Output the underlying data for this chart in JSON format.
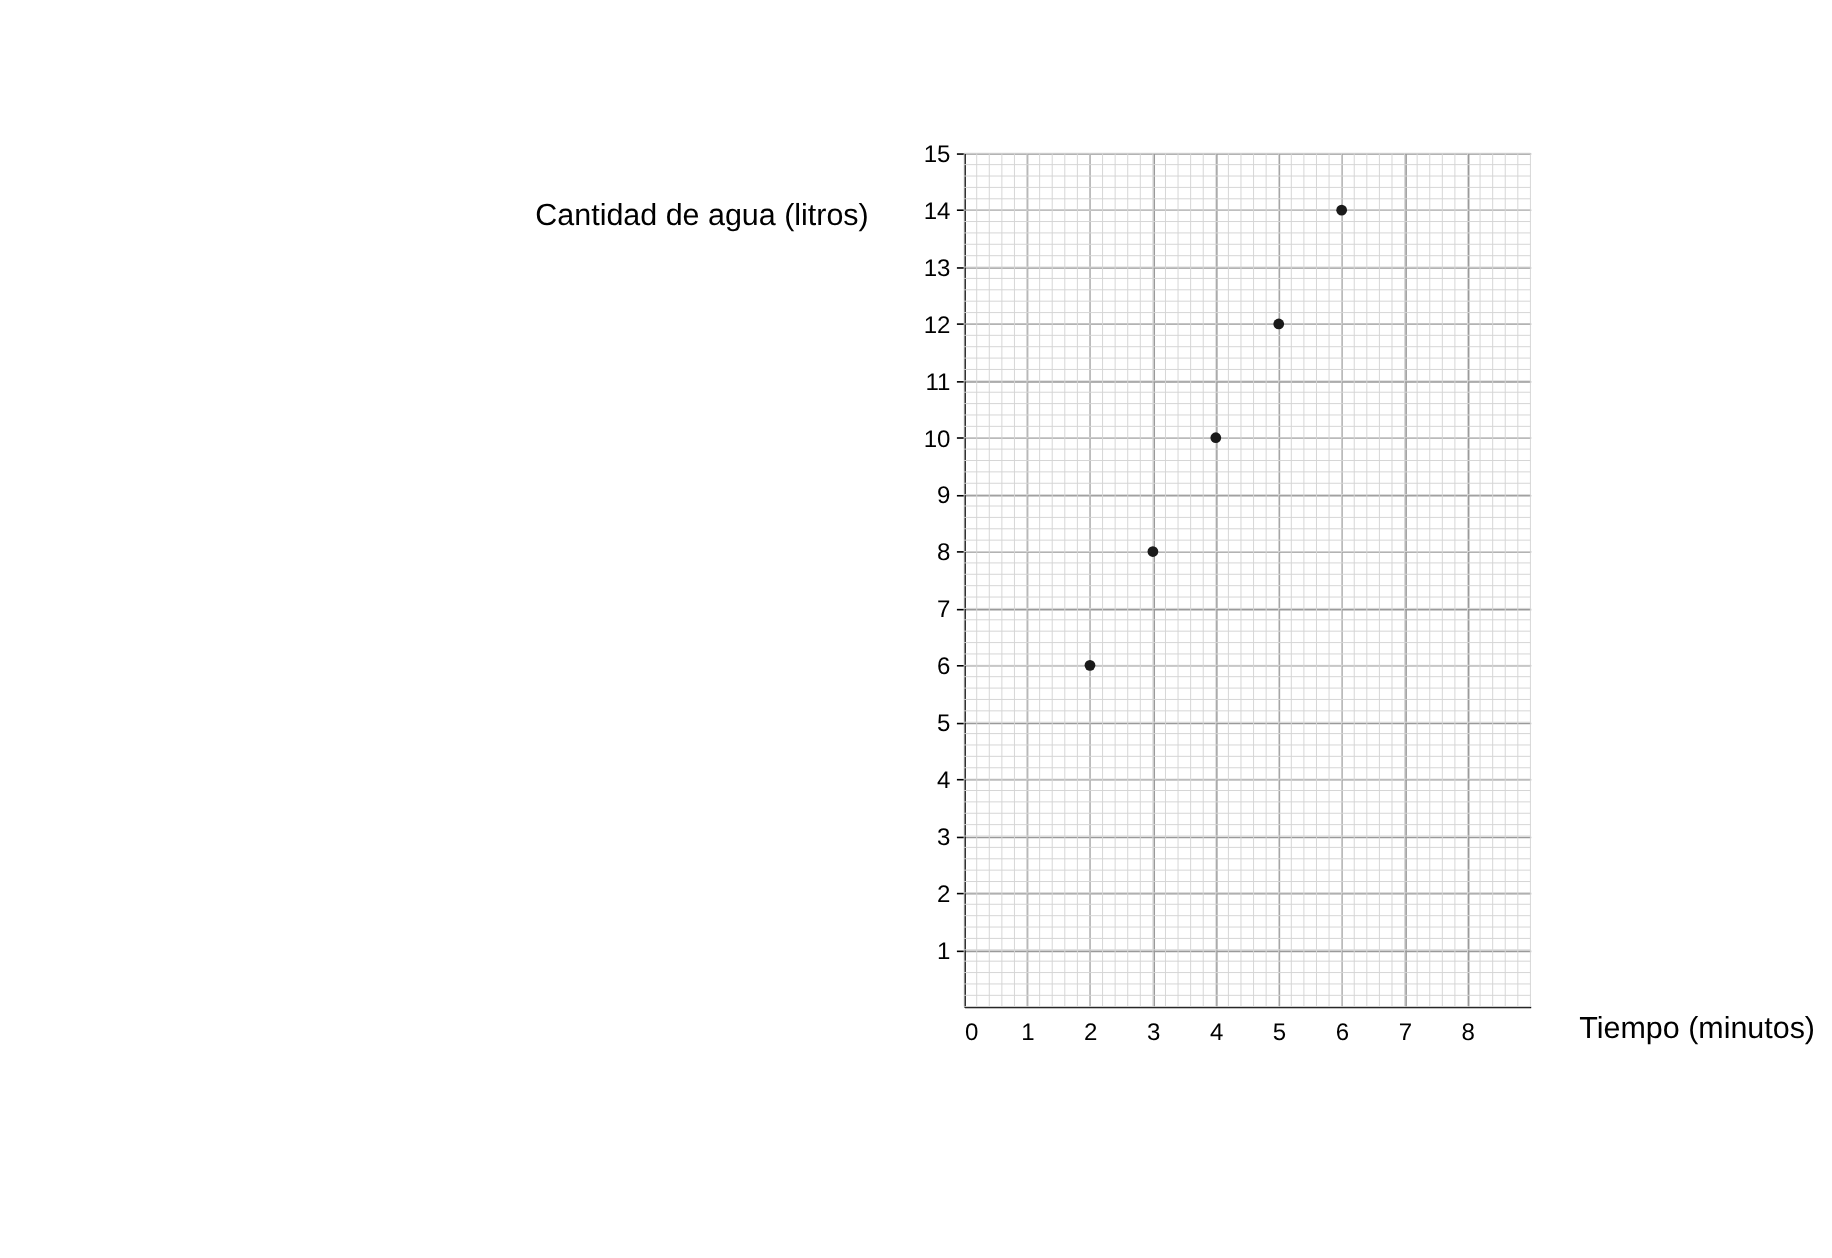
{
  "chart_data": {
    "type": "scatter",
    "x": [
      2,
      3,
      4,
      5,
      6
    ],
    "values": [
      6,
      8,
      10,
      12,
      14
    ],
    "color": "#1a1a1a",
    "marker": "circle",
    "xlabel": "Tiempo (minutos)",
    "ylabel": "Cantidad de agua (litros)",
    "xlim": [
      0,
      9
    ],
    "xticks": [
      0,
      1,
      2,
      3,
      4,
      5,
      6,
      7,
      8
    ],
    "ylim": [
      0,
      15
    ],
    "yticks": [
      1,
      2,
      3,
      4,
      5,
      6,
      7,
      8,
      9,
      10,
      11,
      12,
      13,
      14,
      15
    ],
    "grid": true
  }
}
